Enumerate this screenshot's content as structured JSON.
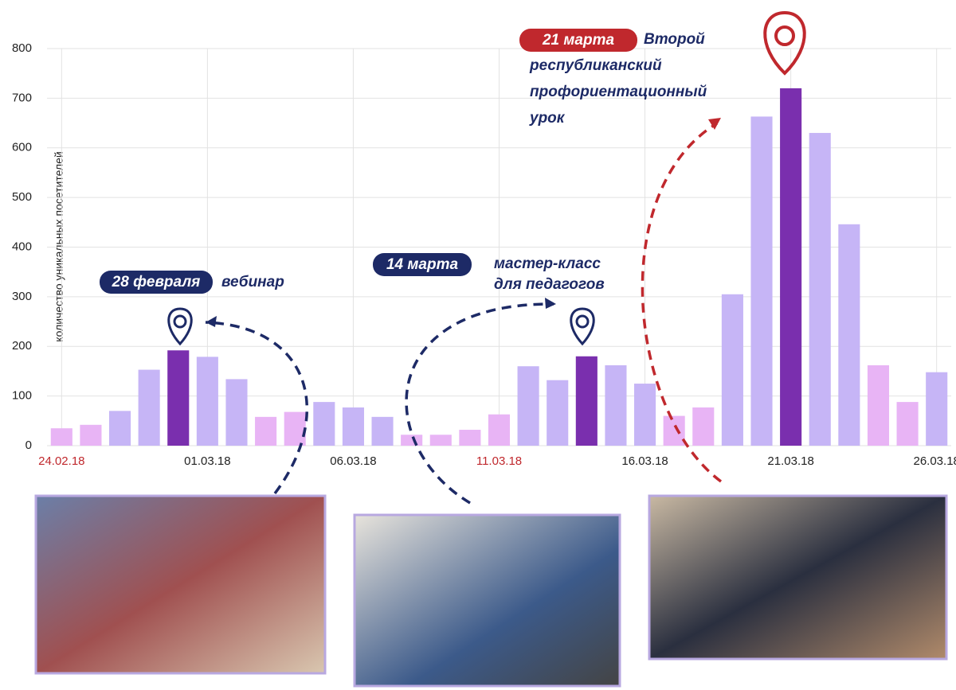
{
  "chart_data": {
    "type": "bar",
    "y_label": "количество уникальных посетителей",
    "categories": [
      "24.02.18",
      null,
      null,
      null,
      null,
      "01.03.18",
      null,
      null,
      null,
      null,
      "06.03.18",
      null,
      null,
      null,
      null,
      "11.03.18",
      null,
      null,
      null,
      null,
      "16.03.18",
      null,
      null,
      null,
      null,
      "21.03.18",
      null,
      null,
      null,
      null,
      "26.03.18"
    ],
    "category_colors": [
      "#c0282d",
      null,
      null,
      null,
      null,
      "#222222",
      null,
      null,
      null,
      null,
      "#222222",
      null,
      null,
      null,
      null,
      "#c0282d",
      null,
      null,
      null,
      null,
      "#222222",
      null,
      null,
      null,
      null,
      "#222222",
      null,
      null,
      null,
      null,
      "#222222"
    ],
    "series": [
      {
        "values": [
          35,
          42,
          70,
          153,
          192,
          179,
          134,
          58,
          68,
          88,
          77,
          58,
          22,
          22,
          32,
          63,
          160,
          132,
          180,
          162,
          125,
          60,
          77,
          305,
          663,
          720,
          630,
          446,
          162,
          88,
          148
        ],
        "colors": [
          "#e8b4f5",
          "#e8b4f5",
          "#c6b5f6",
          "#c6b5f6",
          "#7a2fae",
          "#c6b5f6",
          "#c6b5f6",
          "#e8b4f5",
          "#e8b4f5",
          "#c6b5f6",
          "#c6b5f6",
          "#c6b5f6",
          "#e8b4f5",
          "#e8b4f5",
          "#e8b4f5",
          "#e8b4f5",
          "#c6b5f6",
          "#c6b5f6",
          "#7a2fae",
          "#c6b5f6",
          "#c6b5f6",
          "#e8b4f5",
          "#e8b4f5",
          "#c6b5f6",
          "#c6b5f6",
          "#7a2fae",
          "#c6b5f6",
          "#c6b5f6",
          "#e8b4f5",
          "#e8b4f5",
          "#c6b5f6"
        ]
      }
    ],
    "ylim": [
      0,
      800
    ],
    "yticks": [
      0,
      100,
      200,
      300,
      400,
      500,
      600,
      700,
      800
    ],
    "grid": true,
    "annotations": [
      {
        "badge": "28 февраля",
        "lines": [
          "вебинар"
        ]
      },
      {
        "badge": "14 марта",
        "lines": [
          "мастер-класс",
          "для педагогов"
        ]
      },
      {
        "badge": "21 марта",
        "lines": [
          "Второй",
          "республиканский",
          "профориентационный",
          "урок"
        ]
      }
    ]
  }
}
